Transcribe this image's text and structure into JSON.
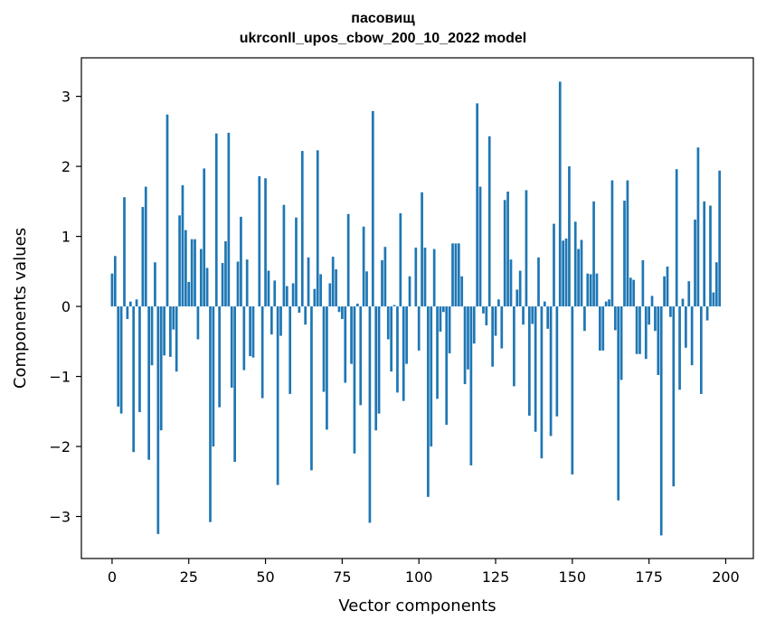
{
  "chart_data": {
    "type": "bar",
    "title": "пасовищ",
    "subtitle": "ukrconll_upos_cbow_200_10_2022 model",
    "xlabel": "Vector components",
    "ylabel": "Components values",
    "xlim": [
      -10,
      209
    ],
    "ylim": [
      -3.6,
      3.55
    ],
    "xticks": [
      0,
      25,
      50,
      75,
      100,
      125,
      150,
      175,
      200
    ],
    "yticks": [
      -3,
      -2,
      -1,
      0,
      1,
      2,
      3
    ],
    "xtick_labels": [
      "0",
      "25",
      "50",
      "75",
      "100",
      "125",
      "150",
      "175",
      "200"
    ],
    "ytick_labels": [
      "−3",
      "−2",
      "−1",
      "0",
      "1",
      "2",
      "3"
    ],
    "bar_color": "#1f77b4",
    "grid": false,
    "legend": "none",
    "values": [
      0.47,
      0.72,
      -1.43,
      -1.53,
      1.56,
      -0.18,
      0.07,
      -2.08,
      0.1,
      -1.51,
      1.42,
      1.71,
      -2.19,
      -0.84,
      0.63,
      -3.25,
      -1.77,
      -0.7,
      2.74,
      -0.72,
      -0.33,
      -0.93,
      1.3,
      1.73,
      1.09,
      0.35,
      0.96,
      0.96,
      -0.47,
      0.82,
      1.97,
      0.55,
      -3.08,
      -2.0,
      2.47,
      -1.44,
      0.62,
      0.93,
      2.48,
      -1.16,
      -2.22,
      0.64,
      1.28,
      -0.91,
      0.67,
      -0.71,
      -0.73,
      0.0,
      1.86,
      -1.31,
      1.83,
      0.51,
      -0.4,
      0.37,
      -2.55,
      -0.42,
      1.45,
      0.29,
      -1.25,
      0.33,
      1.27,
      -0.09,
      2.22,
      -0.26,
      0.7,
      -2.34,
      0.25,
      2.23,
      0.46,
      -1.22,
      -1.76,
      0.33,
      0.71,
      0.53,
      -0.08,
      -0.18,
      -1.09,
      1.32,
      -0.82,
      -2.1,
      0.04,
      -1.41,
      1.14,
      0.5,
      -3.09,
      2.79,
      -1.77,
      -1.53,
      0.66,
      0.85,
      -0.47,
      -0.93,
      0.02,
      -1.23,
      1.33,
      -1.35,
      -0.82,
      0.43,
      0.0,
      0.84,
      -0.63,
      1.63,
      0.84,
      -2.72,
      -2.0,
      0.82,
      -1.32,
      -0.36,
      -0.08,
      -1.69,
      -0.67,
      0.9,
      0.9,
      0.9,
      0.43,
      -1.11,
      -0.9,
      -2.27,
      -0.53,
      2.9,
      1.71,
      -0.1,
      -0.27,
      2.43,
      -0.86,
      -0.42,
      0.1,
      -0.6,
      1.52,
      1.64,
      0.67,
      -1.14,
      0.24,
      0.51,
      -0.26,
      1.66,
      -1.56,
      -0.25,
      -1.79,
      0.7,
      -2.17,
      0.07,
      -0.32,
      -1.85,
      1.18,
      -1.57,
      3.21,
      0.94,
      0.97,
      2.0,
      -2.4,
      1.21,
      0.82,
      0.95,
      -0.35,
      0.47,
      0.46,
      1.5,
      0.47,
      -0.63,
      -0.63,
      0.07,
      0.1,
      1.8,
      -0.34,
      -2.77,
      -1.05,
      1.51,
      1.8,
      0.41,
      0.38,
      -0.68,
      -0.68,
      0.66,
      -0.75,
      -0.26,
      0.15,
      -0.35,
      -0.98,
      -3.27,
      0.43,
      0.57,
      -0.15,
      -2.57,
      1.96,
      -1.19,
      0.11,
      -0.59,
      0.36,
      -0.84,
      1.24,
      2.27,
      -1.25,
      1.5,
      -0.2,
      1.44,
      0.2,
      0.63,
      1.94
    ]
  }
}
